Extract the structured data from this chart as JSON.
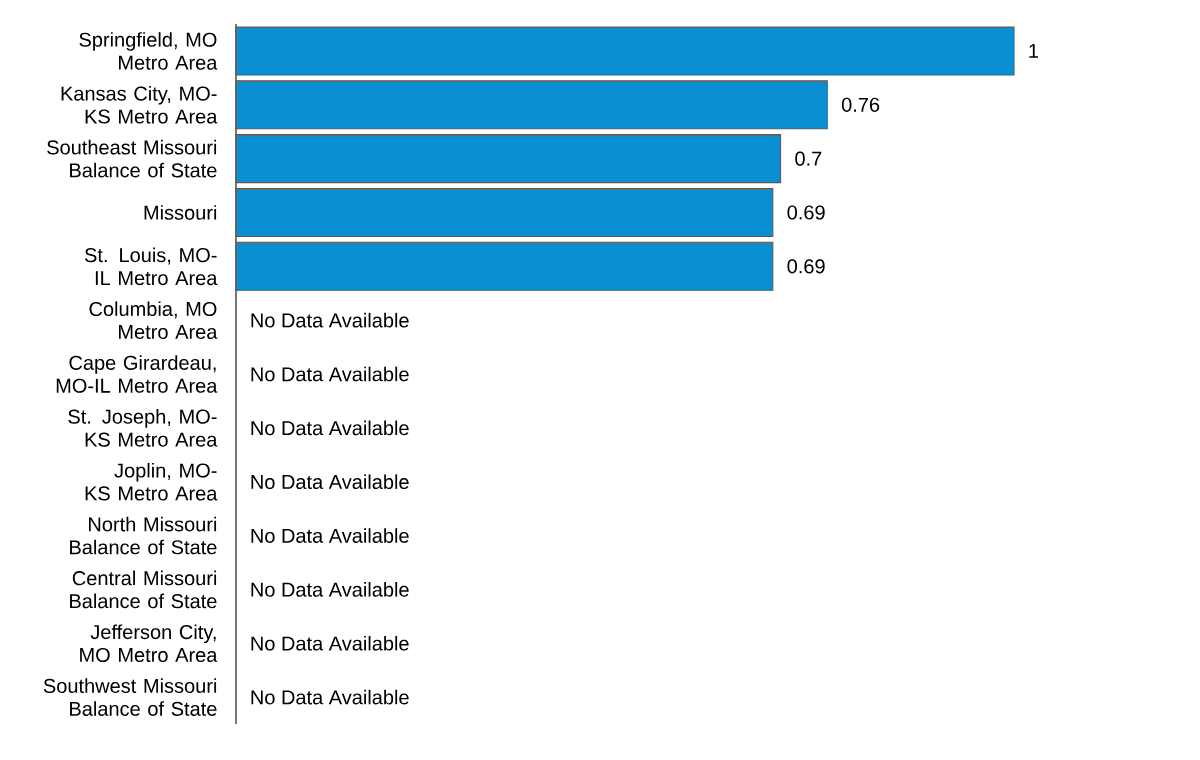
{
  "chart_data": {
    "type": "bar",
    "orientation": "horizontal",
    "categories": [
      "Springfield, MO Metro Area",
      "Kansas City, MO-KS Metro Area",
      "Southeast Missouri Balance of State",
      "Missouri",
      "St. Louis, MO-IL Metro Area",
      "Columbia, MO Metro Area",
      "Cape Girardeau, MO-IL Metro Area",
      "St. Joseph, MO-KS Metro Area",
      "Joplin, MO-KS Metro Area",
      "North Missouri Balance of State",
      "Central Missouri Balance of State",
      "Jefferson City, MO Metro Area",
      "Southwest Missouri Balance of State"
    ],
    "values": [
      1,
      0.76,
      0.7,
      0.69,
      0.69,
      null,
      null,
      null,
      null,
      null,
      null,
      null,
      null
    ],
    "value_labels": [
      "1",
      "0.76",
      "0.7",
      "0.69",
      "0.69",
      "No Data Available",
      "No Data Available",
      "No Data Available",
      "No Data Available",
      "No Data Available",
      "No Data Available",
      "No Data Available",
      "No Data Available"
    ],
    "color": "#0b8fd3",
    "xlim": [
      0,
      1
    ],
    "tick_labels": "y"
  }
}
